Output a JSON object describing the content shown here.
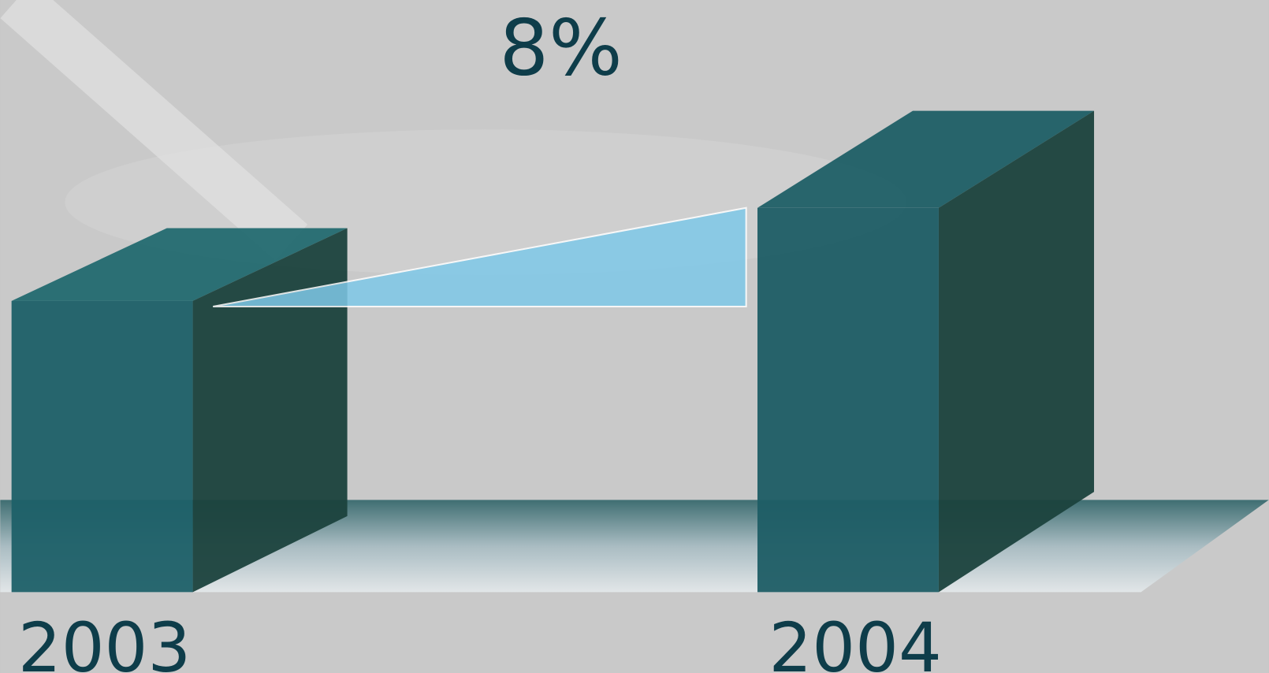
{
  "annotation": "8%",
  "categories": [
    "2003",
    "2004"
  ]
}
